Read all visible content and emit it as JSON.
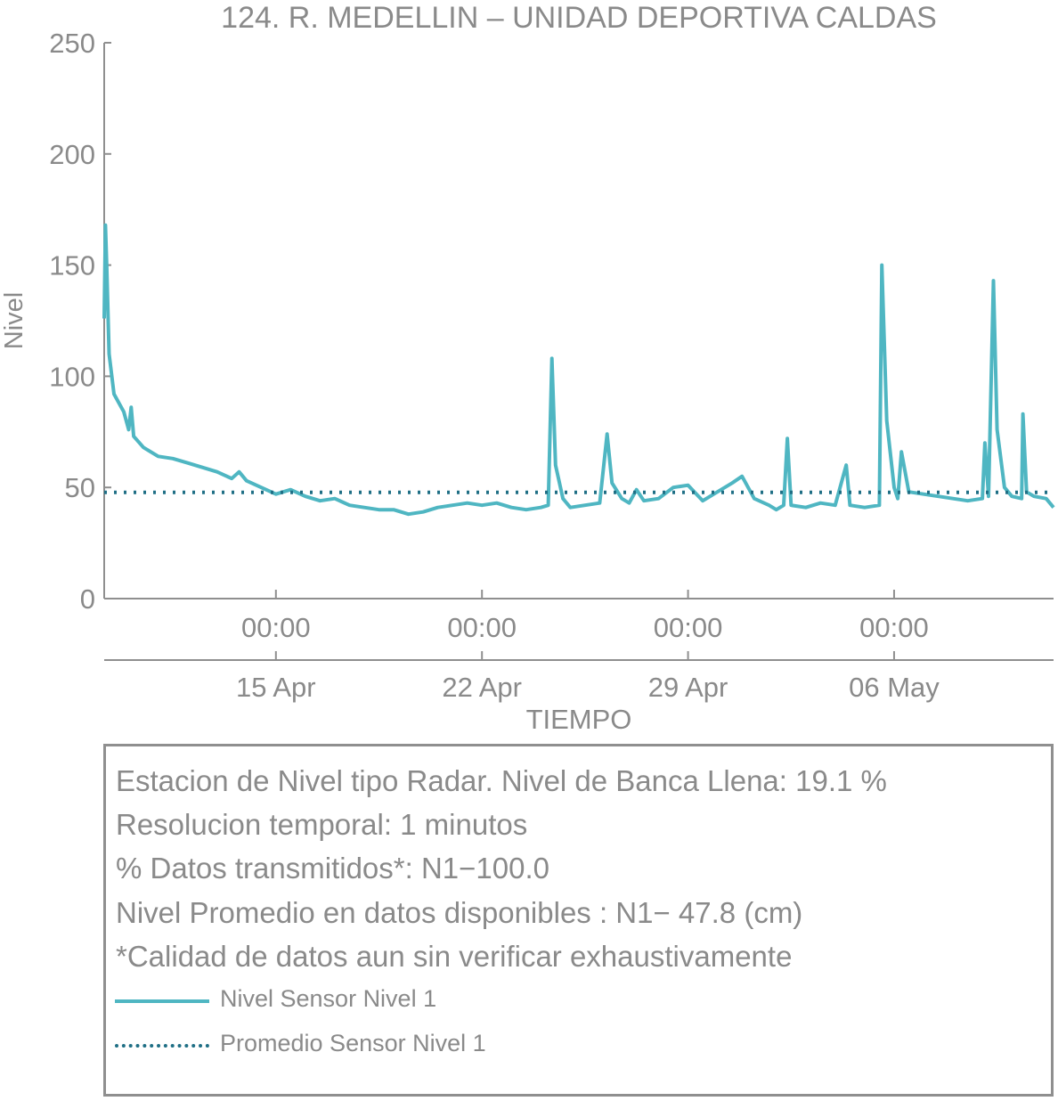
{
  "colors": {
    "series": "#4fb6c2",
    "mean": "#1f6f85",
    "text": "#8a8a8a",
    "axis": "#8f8f8f"
  },
  "chart_data": {
    "type": "line",
    "title": "124. R. MEDELLIN – UNIDAD DEPORTIVA CALDAS",
    "xlabel": "TIEMPO",
    "ylabel": "Nivel",
    "ylim": [
      0,
      250
    ],
    "yticks": [
      0,
      50,
      100,
      150,
      200,
      250
    ],
    "xlim": [
      "2024-04-09 04:00",
      "2024-05-11 10:00"
    ],
    "xticks": [
      {
        "x": "2024-04-15 00:00",
        "time": "00:00",
        "date": "15 Apr"
      },
      {
        "x": "2024-04-22 00:00",
        "time": "00:00",
        "date": "22 Apr"
      },
      {
        "x": "2024-04-29 00:00",
        "time": "00:00",
        "date": "29 Apr"
      },
      {
        "x": "2024-05-06 00:00",
        "time": "00:00",
        "date": "06 May"
      }
    ],
    "grid": false,
    "series": [
      {
        "name": "Nivel Sensor Nivel 1",
        "style": "solid",
        "points": [
          [
            "2024-04-09 04:00",
            126
          ],
          [
            "2024-04-09 05:00",
            168
          ],
          [
            "2024-04-09 06:00",
            150
          ],
          [
            "2024-04-09 08:00",
            110
          ],
          [
            "2024-04-09 12:00",
            92
          ],
          [
            "2024-04-09 20:00",
            84
          ],
          [
            "2024-04-10 00:00",
            76
          ],
          [
            "2024-04-10 02:00",
            86
          ],
          [
            "2024-04-10 04:00",
            73
          ],
          [
            "2024-04-10 12:00",
            68
          ],
          [
            "2024-04-11 00:00",
            64
          ],
          [
            "2024-04-11 12:00",
            63
          ],
          [
            "2024-04-12 00:00",
            61
          ],
          [
            "2024-04-12 12:00",
            59
          ],
          [
            "2024-04-13 00:00",
            57
          ],
          [
            "2024-04-13 12:00",
            54
          ],
          [
            "2024-04-13 18:00",
            57
          ],
          [
            "2024-04-14 00:00",
            53
          ],
          [
            "2024-04-14 12:00",
            50
          ],
          [
            "2024-04-15 00:00",
            47
          ],
          [
            "2024-04-15 12:00",
            49
          ],
          [
            "2024-04-16 00:00",
            46
          ],
          [
            "2024-04-16 12:00",
            44
          ],
          [
            "2024-04-17 00:00",
            45
          ],
          [
            "2024-04-17 12:00",
            42
          ],
          [
            "2024-04-18 00:00",
            41
          ],
          [
            "2024-04-18 12:00",
            40
          ],
          [
            "2024-04-19 00:00",
            40
          ],
          [
            "2024-04-19 12:00",
            38
          ],
          [
            "2024-04-20 00:00",
            39
          ],
          [
            "2024-04-20 12:00",
            41
          ],
          [
            "2024-04-21 00:00",
            42
          ],
          [
            "2024-04-21 12:00",
            43
          ],
          [
            "2024-04-22 00:00",
            42
          ],
          [
            "2024-04-22 12:00",
            43
          ],
          [
            "2024-04-23 00:00",
            41
          ],
          [
            "2024-04-23 12:00",
            40
          ],
          [
            "2024-04-24 00:00",
            41
          ],
          [
            "2024-04-24 06:00",
            42
          ],
          [
            "2024-04-24 09:00",
            108
          ],
          [
            "2024-04-24 12:00",
            60
          ],
          [
            "2024-04-24 18:00",
            45
          ],
          [
            "2024-04-25 00:00",
            41
          ],
          [
            "2024-04-25 12:00",
            42
          ],
          [
            "2024-04-26 00:00",
            43
          ],
          [
            "2024-04-26 06:00",
            74
          ],
          [
            "2024-04-26 10:00",
            52
          ],
          [
            "2024-04-26 18:00",
            45
          ],
          [
            "2024-04-27 00:00",
            43
          ],
          [
            "2024-04-27 06:00",
            49
          ],
          [
            "2024-04-27 12:00",
            44
          ],
          [
            "2024-04-28 00:00",
            45
          ],
          [
            "2024-04-28 12:00",
            50
          ],
          [
            "2024-04-29 00:00",
            51
          ],
          [
            "2024-04-29 12:00",
            44
          ],
          [
            "2024-04-30 00:00",
            48
          ],
          [
            "2024-04-30 12:00",
            52
          ],
          [
            "2024-04-30 20:00",
            55
          ],
          [
            "2024-05-01 06:00",
            45
          ],
          [
            "2024-05-01 18:00",
            42
          ],
          [
            "2024-05-02 00:00",
            40
          ],
          [
            "2024-05-02 06:00",
            42
          ],
          [
            "2024-05-02 09:00",
            72
          ],
          [
            "2024-05-02 12:00",
            42
          ],
          [
            "2024-05-03 00:00",
            41
          ],
          [
            "2024-05-03 12:00",
            43
          ],
          [
            "2024-05-04 00:00",
            42
          ],
          [
            "2024-05-04 09:00",
            60
          ],
          [
            "2024-05-04 12:00",
            42
          ],
          [
            "2024-05-05 00:00",
            41
          ],
          [
            "2024-05-05 12:00",
            42
          ],
          [
            "2024-05-05 14:00",
            150
          ],
          [
            "2024-05-05 18:00",
            80
          ],
          [
            "2024-05-06 00:00",
            50
          ],
          [
            "2024-05-06 03:00",
            45
          ],
          [
            "2024-05-06 06:00",
            66
          ],
          [
            "2024-05-06 12:00",
            48
          ],
          [
            "2024-05-07 00:00",
            47
          ],
          [
            "2024-05-07 12:00",
            46
          ],
          [
            "2024-05-08 00:00",
            45
          ],
          [
            "2024-05-08 12:00",
            44
          ],
          [
            "2024-05-09 00:00",
            45
          ],
          [
            "2024-05-09 02:00",
            70
          ],
          [
            "2024-05-09 05:00",
            46
          ],
          [
            "2024-05-09 09:00",
            143
          ],
          [
            "2024-05-09 12:00",
            76
          ],
          [
            "2024-05-09 18:00",
            50
          ],
          [
            "2024-05-10 00:00",
            46
          ],
          [
            "2024-05-10 08:00",
            45
          ],
          [
            "2024-05-10 09:00",
            83
          ],
          [
            "2024-05-10 12:00",
            48
          ],
          [
            "2024-05-10 18:00",
            46
          ],
          [
            "2024-05-11 04:00",
            45
          ],
          [
            "2024-05-11 10:00",
            41
          ]
        ]
      },
      {
        "name": "Promedio Sensor Nivel 1",
        "style": "dotted",
        "points": [
          [
            "2024-04-09 04:00",
            47.8
          ],
          [
            "2024-05-11 10:00",
            47.8
          ]
        ]
      }
    ]
  },
  "info": {
    "lines": [
      "Estacion de Nivel tipo Radar. Nivel de Banca Llena: 19.1 %",
      "Resolucion temporal: 1 minutos",
      "% Datos transmitidos*: N1−100.0",
      "Nivel Promedio en datos disponibles : N1− 47.8 (cm)",
      "*Calidad de datos aun sin verificar exhaustivamente"
    ],
    "legend": [
      "Nivel Sensor Nivel 1",
      "Promedio Sensor Nivel 1"
    ]
  }
}
